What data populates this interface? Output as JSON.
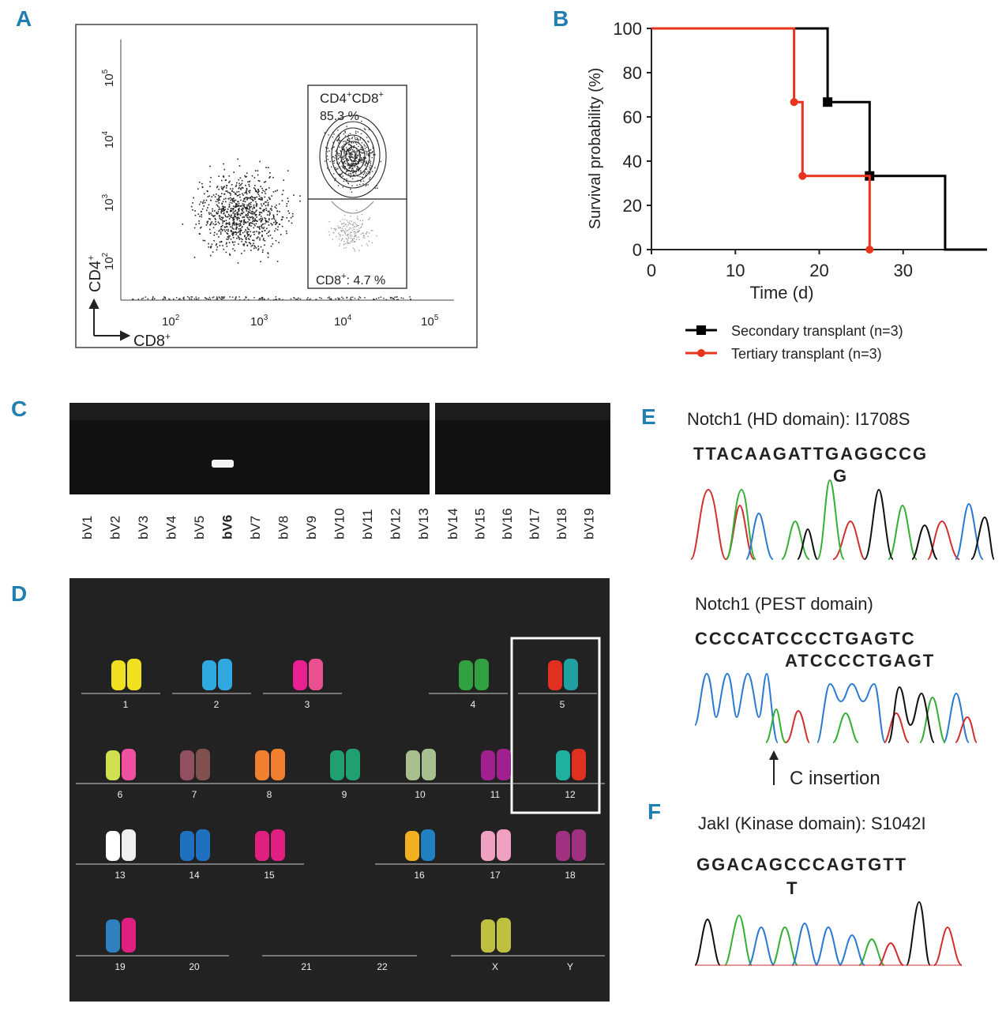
{
  "panels": {
    "A": "A",
    "B": "B",
    "C": "C",
    "D": "D",
    "E": "E",
    "F": "F"
  },
  "flow": {
    "gate_upper_label_a": "CD4",
    "gate_upper_label_b": "+",
    "gate_upper_label_c": "CD8",
    "gate_upper_label_d": "+",
    "gate_upper_pct": "85.3 %",
    "gate_lower_label": "CD8",
    "gate_lower_sup": "+",
    "gate_lower_pct": ": 4.7 %",
    "x_axis_label": "CD8",
    "x_axis_sup": "+",
    "y_axis_label": "CD4",
    "y_axis_sup": "+",
    "x_ticks": [
      "10",
      "10",
      "10",
      "10"
    ],
    "x_tick_exp": [
      "2",
      "3",
      "4",
      "5"
    ],
    "y_ticks": [
      "10",
      "10",
      "10",
      "10"
    ],
    "y_tick_exp": [
      "2",
      "3",
      "4",
      "5"
    ]
  },
  "chart_data": {
    "type": "line",
    "title": "",
    "xlabel": "Time (d)",
    "ylabel": "Survival probability (%)",
    "xlim": [
      0,
      40
    ],
    "ylim": [
      0,
      100
    ],
    "x_ticks": [
      "0",
      "10",
      "20",
      "30"
    ],
    "y_ticks": [
      "0",
      "20",
      "40",
      "60",
      "80",
      "100"
    ],
    "series": [
      {
        "name": "Secondary transplant (n=3)",
        "color": "#000000",
        "marker": "square",
        "steps": [
          [
            0,
            100
          ],
          [
            21,
            100
          ],
          [
            21,
            66.7
          ],
          [
            26,
            66.7
          ],
          [
            26,
            33.3
          ],
          [
            35,
            33.3
          ],
          [
            35,
            0
          ],
          [
            40,
            0
          ]
        ],
        "points": [
          [
            21,
            66.7
          ],
          [
            26,
            33.3
          ]
        ]
      },
      {
        "name": "Tertiary transplant (n=3)",
        "color": "#e8341c",
        "marker": "circle",
        "steps": [
          [
            0,
            100
          ],
          [
            17,
            100
          ],
          [
            17,
            66.7
          ],
          [
            18,
            66.7
          ],
          [
            18,
            33.3
          ],
          [
            26,
            33.3
          ],
          [
            26,
            0
          ]
        ],
        "points": [
          [
            17,
            66.7
          ],
          [
            18,
            33.3
          ],
          [
            26,
            0
          ]
        ]
      }
    ]
  },
  "gel": {
    "lanes": [
      "bV1",
      "bV2",
      "bV3",
      "bV4",
      "bV5",
      "bV6",
      "bV7",
      "bV8",
      "bV9",
      "bV10",
      "bV11",
      "bV12",
      "bV13",
      "bV14",
      "bV15",
      "bV16",
      "bV17",
      "bV18",
      "bV19"
    ],
    "highlight_lane": "bV6"
  },
  "karyotype": {
    "row1": [
      "1",
      "2",
      "3",
      "4",
      "5"
    ],
    "row2": [
      "6",
      "7",
      "8",
      "9",
      "10",
      "11",
      "12"
    ],
    "row3": [
      "13",
      "14",
      "15",
      "16",
      "17",
      "18"
    ],
    "row4": [
      "19",
      "20",
      "21",
      "22",
      "X",
      "Y"
    ]
  },
  "seqE1": {
    "title": "Notch1 (HD domain): I1708S",
    "seq": "TTACAAGATTGAGGCCG",
    "mut": "G"
  },
  "seqE2": {
    "title": "Notch1 (PEST domain)",
    "seq1": "CCCCATCCCCTGAGTC",
    "seq2": "ATCCCCTGAGT",
    "annotation": "C insertion"
  },
  "seqF": {
    "title": "JakI (Kinase domain): S1042I",
    "seq": "GGACAGCCCAGTGTT",
    "mut": "T"
  }
}
